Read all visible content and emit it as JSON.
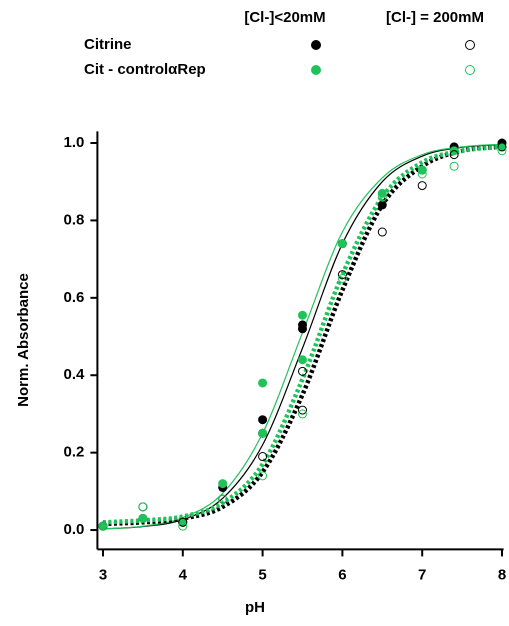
{
  "chart_data": {
    "type": "scatter",
    "xlabel": "pH",
    "ylabel": "Norm. Absorbance",
    "xlim": [
      2.93,
      8.02
    ],
    "ylim": [
      -0.05,
      1.03
    ],
    "xticks": [
      3,
      4,
      5,
      6,
      7,
      8
    ],
    "yticks": [
      {
        "value": 0,
        "label": "0.0"
      },
      {
        "value": 0.2,
        "label": "0.2"
      },
      {
        "value": 0.4,
        "label": "0.4"
      },
      {
        "value": 0.6,
        "label": "0.6"
      },
      {
        "value": 0.8,
        "label": "0.8"
      },
      {
        "value": 1,
        "label": "1.0"
      }
    ],
    "legend": {
      "columns": [
        "[Cl-]<20mM",
        "[Cl-] = 200mM"
      ],
      "rows": [
        "Citrine",
        "Cit - controlαRep"
      ]
    },
    "series": [
      {
        "row": 0,
        "column": 0,
        "color": "#000000",
        "filled": true,
        "x": [
          3,
          3.5,
          4,
          4.5,
          5,
          5,
          5.5,
          5.5,
          6,
          6.5,
          7,
          7.4,
          8
        ],
        "values": [
          0.01,
          0.03,
          0.02,
          0.11,
          0.285,
          0.25,
          0.53,
          0.52,
          0.74,
          0.84,
          0.93,
          0.99,
          1.0
        ]
      },
      {
        "row": 1,
        "column": 0,
        "color": "#1fc35a",
        "filled": true,
        "x": [
          3,
          3.5,
          4,
          4.5,
          5,
          5,
          5.5,
          5.5,
          6,
          6.5,
          7,
          7.4,
          8
        ],
        "values": [
          0.01,
          0.03,
          0.02,
          0.12,
          0.38,
          0.25,
          0.555,
          0.44,
          0.74,
          0.87,
          0.93,
          0.98,
          0.99
        ]
      },
      {
        "row": 0,
        "column": 1,
        "color": "#000000",
        "filled": false,
        "x": [
          3,
          3.5,
          4,
          4.5,
          5,
          5.5,
          5.5,
          6,
          6.5,
          7,
          7.4,
          8
        ],
        "values": [
          0.01,
          0.06,
          0.02,
          0.08,
          0.19,
          0.41,
          0.31,
          0.66,
          0.77,
          0.89,
          0.97,
          0.99
        ]
      },
      {
        "row": 1,
        "column": 1,
        "color": "#1fc35a",
        "filled": false,
        "x": [
          3,
          3.5,
          4,
          4.5,
          5,
          5.5,
          6,
          6.5,
          7,
          7.4,
          8
        ],
        "values": [
          0.01,
          0.06,
          0.01,
          0.08,
          0.14,
          0.3,
          0.65,
          0.86,
          0.92,
          0.94,
          0.98
        ]
      }
    ],
    "fits": [
      {
        "color": "#000000",
        "style": "solid",
        "x": [
          3,
          3.5,
          4,
          4.5,
          5,
          5.5,
          6,
          6.5,
          7,
          7.5,
          8
        ],
        "values": [
          0.003,
          0.009,
          0.027,
          0.082,
          0.22,
          0.47,
          0.74,
          0.9,
          0.966,
          0.989,
          0.996
        ]
      },
      {
        "color": "#1fc35a",
        "style": "solid",
        "x": [
          3,
          3.5,
          4,
          4.5,
          5,
          5.5,
          6,
          6.5,
          7,
          7.5,
          8
        ],
        "values": [
          0.003,
          0.01,
          0.032,
          0.095,
          0.25,
          0.51,
          0.77,
          0.91,
          0.97,
          0.99,
          0.997
        ]
      },
      {
        "color": "#000000",
        "style": "dotted",
        "x": [
          3,
          3.5,
          4,
          4.5,
          5,
          5.5,
          6,
          6.5,
          7,
          7.5,
          8
        ],
        "values": [
          0.016,
          0.02,
          0.03,
          0.06,
          0.15,
          0.35,
          0.62,
          0.84,
          0.94,
          0.98,
          0.99
        ]
      },
      {
        "color": "#1fc35a",
        "style": "dotted",
        "x": [
          3,
          3.5,
          4,
          4.5,
          5,
          5.5,
          6,
          6.5,
          7,
          7.5,
          8
        ],
        "values": [
          0.02,
          0.025,
          0.035,
          0.07,
          0.17,
          0.39,
          0.66,
          0.86,
          0.95,
          0.98,
          0.99
        ]
      }
    ]
  }
}
